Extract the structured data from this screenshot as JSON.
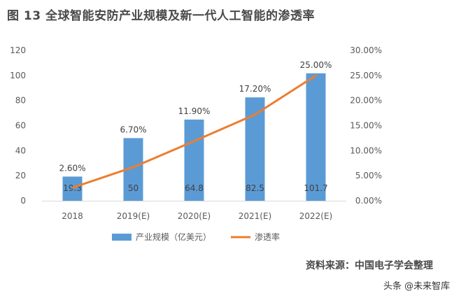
{
  "title": "图 13 全球智能安防产业规模及新一代人工智能的渗透率",
  "source": "资料来源：中国电子学会整理",
  "watermark": "头条 @未来智库",
  "chart_data": {
    "type": "bar",
    "categories": [
      "2018",
      "2019(E)",
      "2020(E)",
      "2021(E)",
      "2022(E)"
    ],
    "series": [
      {
        "name": "产业规模（亿美元）",
        "type": "bar",
        "axis": "left",
        "values": [
          19.3,
          50,
          64.8,
          82.5,
          101.7
        ],
        "labels": [
          "19.3",
          "50",
          "64.8",
          "82.5",
          "101.7"
        ],
        "color": "#5b9bd5"
      },
      {
        "name": "渗透率",
        "type": "line",
        "axis": "right",
        "values": [
          2.6,
          6.7,
          11.9,
          17.2,
          25.0
        ],
        "labels": [
          "2.60%",
          "6.70%",
          "11.90%",
          "17.20%",
          "25.00%"
        ],
        "color": "#ed7d31"
      }
    ],
    "y_left": {
      "min": 0,
      "max": 120,
      "ticks": [
        "0",
        "20",
        "40",
        "60",
        "80",
        "100",
        "120"
      ]
    },
    "y_right": {
      "min": 0,
      "max": 30,
      "ticks": [
        "0.00%",
        "5.00%",
        "10.00%",
        "15.00%",
        "20.00%",
        "25.00%",
        "30.00%"
      ]
    },
    "legend_position": "bottom",
    "grid": false
  }
}
